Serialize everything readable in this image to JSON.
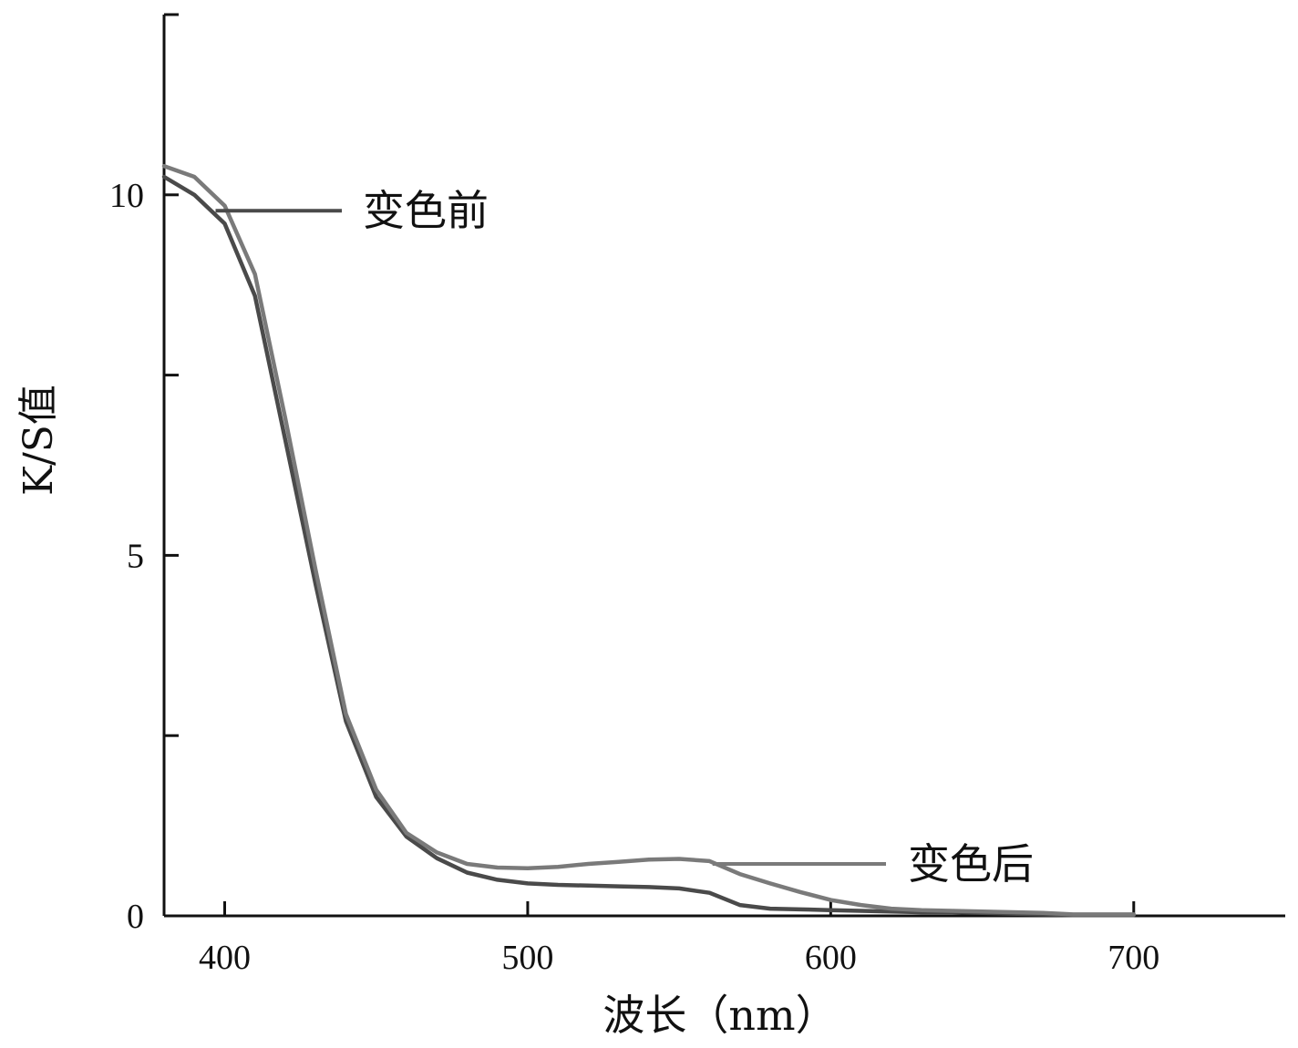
{
  "chart_data": {
    "type": "line",
    "xlabel": "波长（nm）",
    "ylabel": "K/S值",
    "xlim": [
      380,
      750
    ],
    "ylim": [
      0,
      12.5
    ],
    "x_ticks": [
      400,
      500,
      600,
      700
    ],
    "x_tick_labels": [
      "400",
      "500",
      "600",
      "700"
    ],
    "y_ticks": [
      0,
      2.5,
      5,
      7.5,
      10,
      12.5
    ],
    "y_tick_labels": [
      "0",
      "",
      "5",
      "",
      "10",
      ""
    ],
    "grid": false,
    "series": [
      {
        "name": "变色前",
        "color": "#4a4a4a",
        "x": [
          380,
          390,
          400,
          410,
          420,
          430,
          440,
          450,
          460,
          470,
          480,
          490,
          500,
          510,
          520,
          530,
          540,
          550,
          560,
          570,
          580,
          590,
          600,
          610,
          620,
          630,
          640,
          650,
          660,
          670,
          680,
          690,
          700
        ],
        "y": [
          10.25,
          10.0,
          9.6,
          8.6,
          6.6,
          4.6,
          2.7,
          1.65,
          1.1,
          0.8,
          0.6,
          0.5,
          0.45,
          0.43,
          0.42,
          0.41,
          0.4,
          0.38,
          0.32,
          0.15,
          0.1,
          0.09,
          0.08,
          0.07,
          0.06,
          0.05,
          0.05,
          0.04,
          0.03,
          0.02,
          0.01,
          0.01,
          0.01
        ]
      },
      {
        "name": "变色后",
        "color": "#7a7a7a",
        "x": [
          380,
          390,
          400,
          410,
          420,
          430,
          440,
          450,
          460,
          470,
          480,
          490,
          500,
          510,
          520,
          530,
          540,
          550,
          560,
          570,
          580,
          590,
          600,
          610,
          620,
          630,
          640,
          650,
          660,
          670,
          680,
          690,
          700
        ],
        "y": [
          10.4,
          10.25,
          9.85,
          8.9,
          6.9,
          4.8,
          2.8,
          1.75,
          1.15,
          0.88,
          0.72,
          0.67,
          0.66,
          0.68,
          0.72,
          0.75,
          0.78,
          0.79,
          0.76,
          0.58,
          0.45,
          0.33,
          0.22,
          0.15,
          0.1,
          0.08,
          0.07,
          0.06,
          0.05,
          0.04,
          0.02,
          0.02,
          0.02
        ]
      }
    ],
    "annotations": [
      "变色前",
      "变色后"
    ]
  }
}
